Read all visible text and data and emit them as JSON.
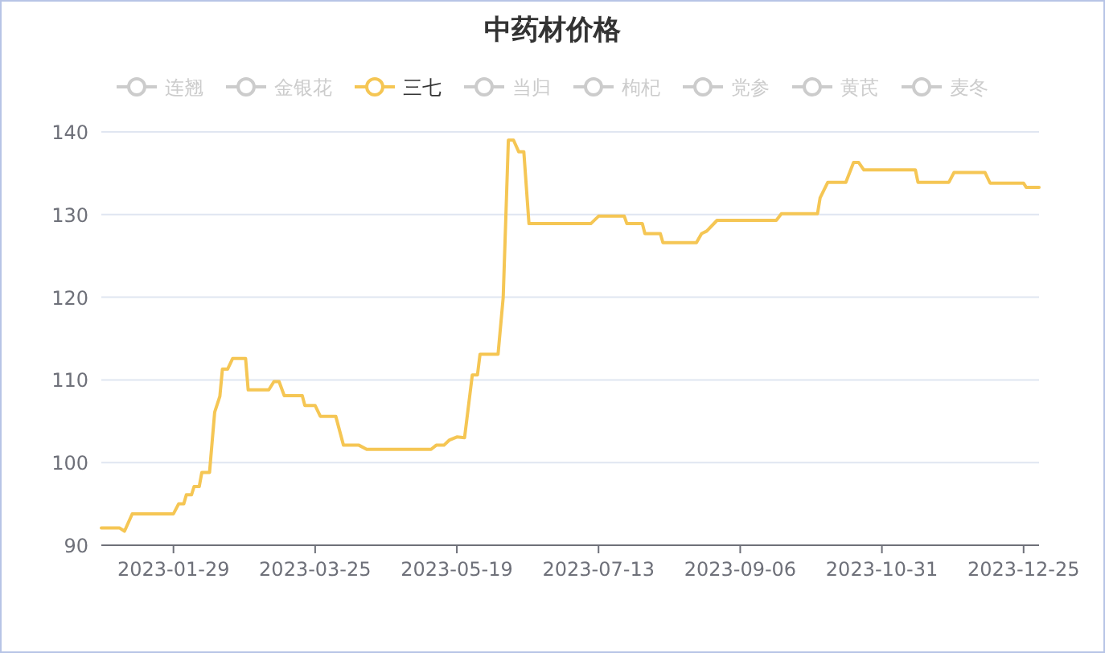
{
  "chart_data": {
    "type": "line",
    "title": "中药材价格",
    "x": [
      "2023-01-01",
      "2023-01-08",
      "2023-01-10",
      "2023-01-13",
      "2023-01-29",
      "2023-01-31",
      "2023-02-02",
      "2023-02-03",
      "2023-02-05",
      "2023-02-06",
      "2023-02-08",
      "2023-02-09",
      "2023-02-12",
      "2023-02-14",
      "2023-02-16",
      "2023-02-17",
      "2023-02-19",
      "2023-02-21",
      "2023-02-26",
      "2023-02-27",
      "2023-03-07",
      "2023-03-09",
      "2023-03-11",
      "2023-03-13",
      "2023-03-20",
      "2023-03-21",
      "2023-03-25",
      "2023-03-27",
      "2023-04-02",
      "2023-04-05",
      "2023-04-11",
      "2023-04-14",
      "2023-05-09",
      "2023-05-11",
      "2023-05-14",
      "2023-05-16",
      "2023-05-19",
      "2023-05-22",
      "2023-05-25",
      "2023-05-27",
      "2023-05-28",
      "2023-06-04",
      "2023-06-06",
      "2023-06-08",
      "2023-06-10",
      "2023-06-12",
      "2023-06-14",
      "2023-06-16",
      "2023-07-10",
      "2023-07-13",
      "2023-07-23",
      "2023-07-24",
      "2023-07-30",
      "2023-07-31",
      "2023-08-06",
      "2023-08-07",
      "2023-08-20",
      "2023-08-22",
      "2023-08-24",
      "2023-08-28",
      "2023-09-06",
      "2023-09-20",
      "2023-09-22",
      "2023-10-06",
      "2023-10-07",
      "2023-10-10",
      "2023-10-17",
      "2023-10-20",
      "2023-10-22",
      "2023-10-24",
      "2023-10-31",
      "2023-11-13",
      "2023-11-14",
      "2023-11-26",
      "2023-11-28",
      "2023-12-10",
      "2023-12-12",
      "2023-12-25",
      "2023-12-26",
      "2023-12-31"
    ],
    "series": [
      {
        "name": "连翘",
        "color": "#cccccc",
        "values": [
          null,
          null,
          null,
          null,
          null,
          null,
          null,
          null,
          null,
          null,
          null,
          null,
          null,
          null,
          null,
          null,
          null,
          null,
          null,
          null,
          null,
          null,
          null,
          null,
          null,
          null,
          null,
          null,
          null,
          null,
          null,
          null,
          null,
          null,
          null,
          null,
          null,
          null,
          null,
          null,
          null,
          null,
          null,
          null,
          null,
          null,
          null,
          null,
          null,
          null,
          null,
          null,
          null,
          null,
          null,
          null,
          null,
          null,
          null,
          null,
          null,
          null,
          null,
          null,
          null,
          null,
          null,
          null,
          null,
          null,
          null,
          null,
          null,
          null,
          null,
          null,
          null,
          null,
          null,
          null
        ]
      },
      {
        "name": "金银花",
        "color": "#cccccc",
        "values": [
          null,
          null,
          null,
          null,
          null,
          null,
          null,
          null,
          null,
          null,
          null,
          null,
          null,
          null,
          null,
          null,
          null,
          null,
          null,
          null,
          null,
          null,
          null,
          null,
          null,
          null,
          null,
          null,
          null,
          null,
          null,
          null,
          null,
          null,
          null,
          null,
          null,
          null,
          null,
          null,
          null,
          null,
          null,
          null,
          null,
          null,
          null,
          null,
          null,
          null,
          null,
          null,
          null,
          null,
          null,
          null,
          null,
          null,
          null,
          null,
          null,
          null,
          null,
          null,
          null,
          null,
          null,
          null,
          null,
          null,
          null,
          null,
          null,
          null,
          null,
          null,
          null,
          null,
          null,
          null
        ]
      },
      {
        "name": "三七",
        "color": "#f5c654",
        "values": [
          92.1,
          92.1,
          91.7,
          93.8,
          93.8,
          95.0,
          95.0,
          96.1,
          96.1,
          97.1,
          97.1,
          98.8,
          98.8,
          106.1,
          108.0,
          111.3,
          111.3,
          112.6,
          112.6,
          108.8,
          108.8,
          109.8,
          109.8,
          108.1,
          108.1,
          106.9,
          106.9,
          105.6,
          105.6,
          102.1,
          102.1,
          101.6,
          101.6,
          102.1,
          102.1,
          102.7,
          103.1,
          103.0,
          110.6,
          110.6,
          113.1,
          113.1,
          120.0,
          139.0,
          139.0,
          137.6,
          137.6,
          128.9,
          128.9,
          129.8,
          129.8,
          128.9,
          128.9,
          127.7,
          127.7,
          126.6,
          126.6,
          127.7,
          128.0,
          129.3,
          129.3,
          129.3,
          130.1,
          130.1,
          132.0,
          133.9,
          133.9,
          136.3,
          136.3,
          135.4,
          135.4,
          135.4,
          133.9,
          133.9,
          135.1,
          135.1,
          133.8,
          133.8,
          133.3,
          133.3
        ]
      },
      {
        "name": "当归",
        "color": "#cccccc",
        "values": [
          null,
          null,
          null,
          null,
          null,
          null,
          null,
          null,
          null,
          null,
          null,
          null,
          null,
          null,
          null,
          null,
          null,
          null,
          null,
          null,
          null,
          null,
          null,
          null,
          null,
          null,
          null,
          null,
          null,
          null,
          null,
          null,
          null,
          null,
          null,
          null,
          null,
          null,
          null,
          null,
          null,
          null,
          null,
          null,
          null,
          null,
          null,
          null,
          null,
          null,
          null,
          null,
          null,
          null,
          null,
          null,
          null,
          null,
          null,
          null,
          null,
          null,
          null,
          null,
          null,
          null,
          null,
          null,
          null,
          null,
          null,
          null,
          null,
          null,
          null,
          null,
          null,
          null,
          null,
          null
        ]
      },
      {
        "name": "枸杞",
        "color": "#cccccc",
        "values": [
          null,
          null,
          null,
          null,
          null,
          null,
          null,
          null,
          null,
          null,
          null,
          null,
          null,
          null,
          null,
          null,
          null,
          null,
          null,
          null,
          null,
          null,
          null,
          null,
          null,
          null,
          null,
          null,
          null,
          null,
          null,
          null,
          null,
          null,
          null,
          null,
          null,
          null,
          null,
          null,
          null,
          null,
          null,
          null,
          null,
          null,
          null,
          null,
          null,
          null,
          null,
          null,
          null,
          null,
          null,
          null,
          null,
          null,
          null,
          null,
          null,
          null,
          null,
          null,
          null,
          null,
          null,
          null,
          null,
          null,
          null,
          null,
          null,
          null,
          null,
          null,
          null,
          null,
          null,
          null
        ]
      },
      {
        "name": "党参",
        "color": "#cccccc",
        "values": [
          null,
          null,
          null,
          null,
          null,
          null,
          null,
          null,
          null,
          null,
          null,
          null,
          null,
          null,
          null,
          null,
          null,
          null,
          null,
          null,
          null,
          null,
          null,
          null,
          null,
          null,
          null,
          null,
          null,
          null,
          null,
          null,
          null,
          null,
          null,
          null,
          null,
          null,
          null,
          null,
          null,
          null,
          null,
          null,
          null,
          null,
          null,
          null,
          null,
          null,
          null,
          null,
          null,
          null,
          null,
          null,
          null,
          null,
          null,
          null,
          null,
          null,
          null,
          null,
          null,
          null,
          null,
          null,
          null,
          null,
          null,
          null,
          null,
          null,
          null,
          null,
          null,
          null,
          null,
          null
        ]
      },
      {
        "name": "黄芪",
        "color": "#cccccc",
        "values": [
          null,
          null,
          null,
          null,
          null,
          null,
          null,
          null,
          null,
          null,
          null,
          null,
          null,
          null,
          null,
          null,
          null,
          null,
          null,
          null,
          null,
          null,
          null,
          null,
          null,
          null,
          null,
          null,
          null,
          null,
          null,
          null,
          null,
          null,
          null,
          null,
          null,
          null,
          null,
          null,
          null,
          null,
          null,
          null,
          null,
          null,
          null,
          null,
          null,
          null,
          null,
          null,
          null,
          null,
          null,
          null,
          null,
          null,
          null,
          null,
          null,
          null,
          null,
          null,
          null,
          null,
          null,
          null,
          null,
          null,
          null,
          null,
          null,
          null,
          null,
          null,
          null,
          null,
          null,
          null
        ]
      },
      {
        "name": "麦冬",
        "color": "#cccccc",
        "values": [
          null,
          null,
          null,
          null,
          null,
          null,
          null,
          null,
          null,
          null,
          null,
          null,
          null,
          null,
          null,
          null,
          null,
          null,
          null,
          null,
          null,
          null,
          null,
          null,
          null,
          null,
          null,
          null,
          null,
          null,
          null,
          null,
          null,
          null,
          null,
          null,
          null,
          null,
          null,
          null,
          null,
          null,
          null,
          null,
          null,
          null,
          null,
          null,
          null,
          null,
          null,
          null,
          null,
          null,
          null,
          null,
          null,
          null,
          null,
          null,
          null,
          null,
          null,
          null,
          null,
          null,
          null,
          null,
          null,
          null,
          null,
          null,
          null,
          null,
          null,
          null,
          null,
          null,
          null,
          null
        ]
      }
    ],
    "xlim": [
      "2023-01-01",
      "2023-12-31"
    ],
    "xticks": [
      "2023-01-29",
      "2023-03-25",
      "2023-05-19",
      "2023-07-13",
      "2023-09-06",
      "2023-10-31",
      "2023-12-25"
    ],
    "ylim": [
      90,
      140
    ],
    "yticks": [
      90,
      100,
      110,
      120,
      130,
      140
    ],
    "grid": "y",
    "legend": "top",
    "line_style": "solid"
  }
}
